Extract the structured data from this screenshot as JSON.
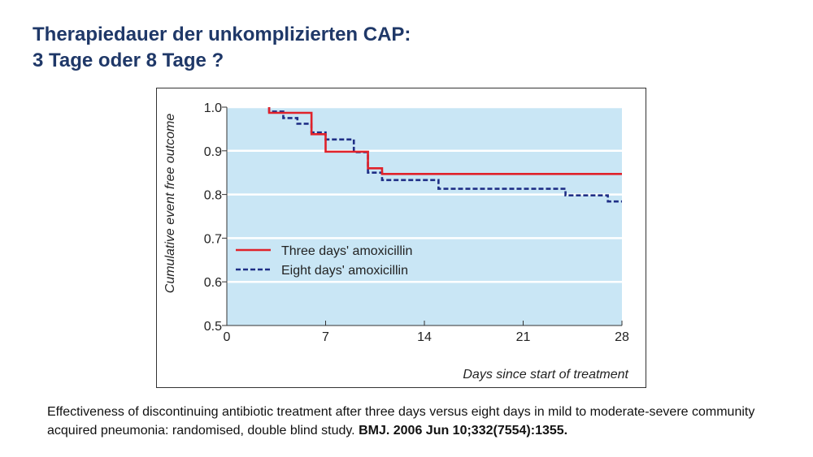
{
  "slide": {
    "title_line1": "Therapiedauer der unkomplizierten CAP:",
    "title_line2": "3 Tage oder 8 Tage ?"
  },
  "citation": {
    "text": "Effectiveness of discontinuing antibiotic treatment after three days versus eight days in mild to moderate-severe community acquired pneumonia: randomised, double blind study.",
    "reference": "BMJ. 2006 Jun 10;332(7554):1355."
  },
  "colors": {
    "title": "#1f3868",
    "plot_background": "#c9e6f5",
    "grid": "#ffffff",
    "three_days": "#e0222a",
    "eight_days": "#1f2f86"
  },
  "chart_data": {
    "type": "line",
    "title": "",
    "xlabel": "Days since start of treatment",
    "ylabel": "Cumulative event free outcome",
    "xlim": [
      0,
      28
    ],
    "ylim": [
      0.5,
      1.0
    ],
    "x_ticks": [
      "0",
      "7",
      "14",
      "21",
      "28"
    ],
    "x_tick_values": [
      0,
      7,
      14,
      21,
      28
    ],
    "y_ticks": [
      "1.0",
      "0.9",
      "0.8",
      "0.7",
      "0.6",
      "0.5"
    ],
    "y_tick_values": [
      1.0,
      0.9,
      0.8,
      0.7,
      0.6,
      0.5
    ],
    "grid": "horizontal",
    "legend_position": "lower-left",
    "step": true,
    "series": [
      {
        "name": "Three days' amoxicillin",
        "style": "solid",
        "x": [
          3,
          6,
          7,
          10,
          11,
          28
        ],
        "y": [
          0.987,
          0.938,
          0.898,
          0.86,
          0.847,
          0.847
        ]
      },
      {
        "name": "Eight days' amoxicillin",
        "style": "dashed",
        "x": [
          3,
          4,
          5,
          6,
          7,
          9,
          10,
          11,
          15,
          24,
          27,
          28
        ],
        "y": [
          0.99,
          0.975,
          0.962,
          0.942,
          0.926,
          0.897,
          0.85,
          0.833,
          0.813,
          0.798,
          0.784,
          0.784
        ]
      }
    ]
  }
}
